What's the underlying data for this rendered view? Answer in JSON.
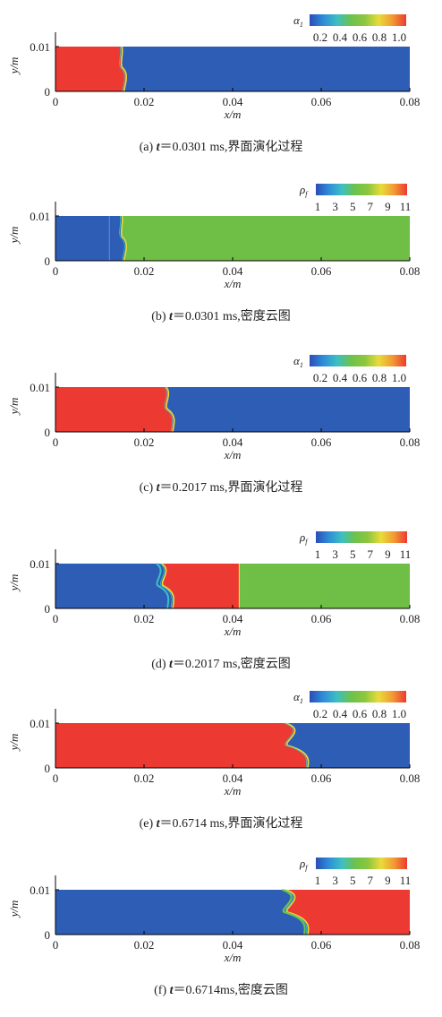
{
  "figure": {
    "x_axis": {
      "label": "x/m",
      "range": [
        0,
        0.08
      ],
      "ticks": [
        "0",
        "0.02",
        "0.04",
        "0.06",
        "0.08"
      ]
    },
    "y_axis": {
      "label": "y/m",
      "range": [
        0,
        0.01
      ],
      "ticks": [
        "0",
        "0.01"
      ]
    },
    "colors": {
      "light_phase": "#2E5DB5",
      "heavy_phase": "#EC3A33",
      "mid_density": "#6FBE45",
      "colorbar_stops": [
        "#2B4DB8",
        "#2E8ED8",
        "#3DBFC2",
        "#6DC24B",
        "#8CC63F",
        "#E8DC3A",
        "#F29A33",
        "#EC3A33"
      ]
    }
  },
  "colorbars": {
    "alpha": {
      "symbol": "α",
      "subscript": "1",
      "ticks": [
        "0.2",
        "0.4",
        "0.6",
        "0.8",
        "1.0"
      ]
    },
    "rho": {
      "symbol": "ρ",
      "subscript": "f",
      "ticks": [
        "1",
        "3",
        "5",
        "7",
        "9",
        "11"
      ]
    }
  },
  "chart_data": [
    {
      "type": "heatmap",
      "field": "α1",
      "time_ms": 0.0301,
      "interface_x": [
        0.015,
        0.0155
      ],
      "caption": {
        "prefix": "(a) ",
        "var": "t",
        "rest": "＝0.0301 ms,界面演化过程"
      }
    },
    {
      "type": "heatmap",
      "field": "ρf",
      "time_ms": 0.0301,
      "interface_x": [
        0.015,
        0.0155
      ],
      "caption": {
        "prefix": "(b) ",
        "var": "t",
        "rest": "＝0.0301 ms,密度云图"
      }
    },
    {
      "type": "heatmap",
      "field": "α1",
      "time_ms": 0.2017,
      "interface_x": [
        0.025,
        0.0265
      ],
      "caption": {
        "prefix": "(c) ",
        "var": "t",
        "rest": "＝0.2017 ms,界面演化过程"
      }
    },
    {
      "type": "heatmap",
      "field": "ρf",
      "time_ms": 0.2017,
      "interface_x": [
        0.024,
        0.0265
      ],
      "shock_x": 0.0415,
      "caption": {
        "prefix": "(d) ",
        "var": "t",
        "rest": "＝0.2017 ms,密度云图"
      }
    },
    {
      "type": "heatmap",
      "field": "α1",
      "time_ms": 0.6714,
      "interface_x": [
        0.052,
        0.057
      ],
      "caption": {
        "prefix": "(e) ",
        "var": "t",
        "rest": "＝0.6714 ms,界面演化过程"
      }
    },
    {
      "type": "heatmap",
      "field": "ρf",
      "time_ms": 0.6714,
      "interface_x": [
        0.052,
        0.057
      ],
      "caption": {
        "prefix": "(f) ",
        "var": "t",
        "rest": "＝0.6714ms,密度云图"
      }
    }
  ]
}
